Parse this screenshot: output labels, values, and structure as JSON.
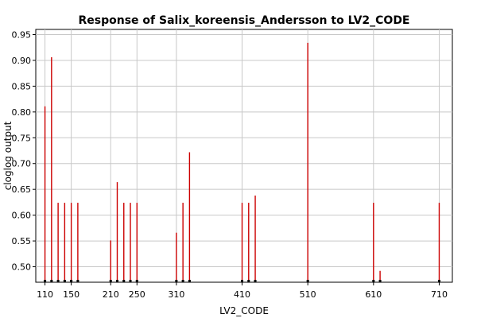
{
  "chart_data": {
    "type": "bar",
    "title": "Response of Salix_koreensis_Andersson to LV2_CODE",
    "xlabel": "LV2_CODE",
    "ylabel": "cloglog output",
    "xlim": [
      96,
      730
    ],
    "ylim": [
      0.47,
      0.96
    ],
    "grid": true,
    "bar_color": "#cc0000",
    "x_ticks": [
      110,
      150,
      210,
      250,
      310,
      410,
      510,
      610,
      710
    ],
    "y_ticks": [
      0.5,
      0.55,
      0.6,
      0.65,
      0.7,
      0.75,
      0.8,
      0.85,
      0.9,
      0.95
    ],
    "x_tick_labels": [
      "110",
      "150",
      "210",
      "250",
      "310",
      "410",
      "510",
      "610",
      "710"
    ],
    "y_tick_labels": [
      "0.50",
      "0.55",
      "0.60",
      "0.65",
      "0.70",
      "0.75",
      "0.80",
      "0.85",
      "0.90",
      "0.95"
    ],
    "points": [
      {
        "x": 110,
        "y": 0.811
      },
      {
        "x": 120,
        "y": 0.906
      },
      {
        "x": 130,
        "y": 0.624
      },
      {
        "x": 140,
        "y": 0.624
      },
      {
        "x": 150,
        "y": 0.624
      },
      {
        "x": 160,
        "y": 0.624
      },
      {
        "x": 210,
        "y": 0.551
      },
      {
        "x": 220,
        "y": 0.664
      },
      {
        "x": 230,
        "y": 0.624
      },
      {
        "x": 240,
        "y": 0.624
      },
      {
        "x": 250,
        "y": 0.624
      },
      {
        "x": 310,
        "y": 0.566
      },
      {
        "x": 320,
        "y": 0.624
      },
      {
        "x": 330,
        "y": 0.722
      },
      {
        "x": 410,
        "y": 0.624
      },
      {
        "x": 420,
        "y": 0.624
      },
      {
        "x": 430,
        "y": 0.638
      },
      {
        "x": 510,
        "y": 0.934
      },
      {
        "x": 610,
        "y": 0.624
      },
      {
        "x": 620,
        "y": 0.492
      },
      {
        "x": 710,
        "y": 0.624
      }
    ]
  }
}
